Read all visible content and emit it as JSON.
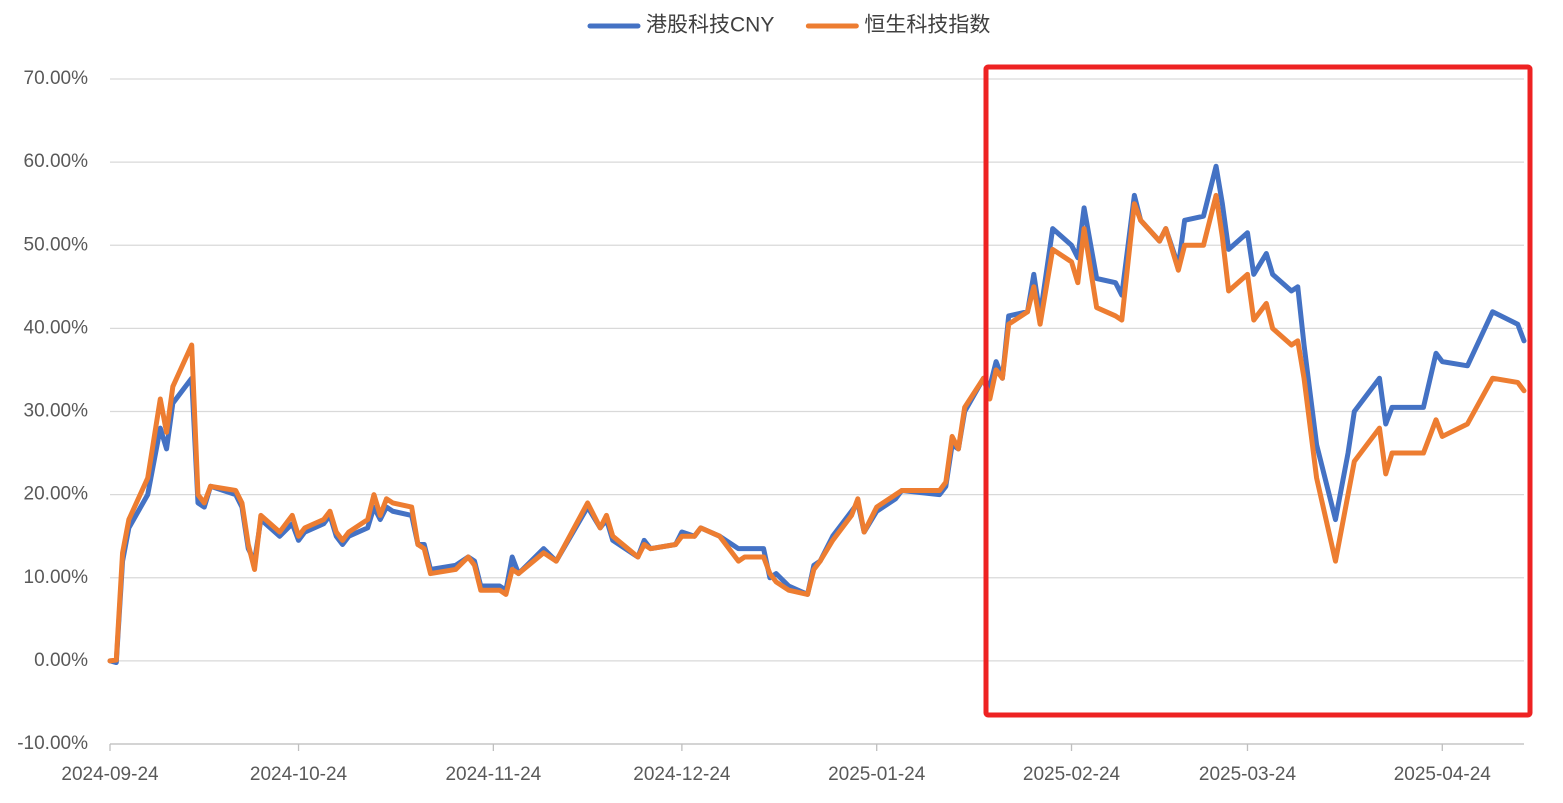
{
  "chart_data": {
    "type": "line",
    "x": [
      "2024-09-24",
      "2024-09-25",
      "2024-09-26",
      "2024-09-27",
      "2024-09-30",
      "2024-10-02",
      "2024-10-03",
      "2024-10-04",
      "2024-10-07",
      "2024-10-08",
      "2024-10-09",
      "2024-10-10",
      "2024-10-14",
      "2024-10-15",
      "2024-10-16",
      "2024-10-17",
      "2024-10-18",
      "2024-10-21",
      "2024-10-23",
      "2024-10-24",
      "2024-10-25",
      "2024-10-28",
      "2024-10-29",
      "2024-10-30",
      "2024-10-31",
      "2024-11-01",
      "2024-11-04",
      "2024-11-05",
      "2024-11-06",
      "2024-11-07",
      "2024-11-08",
      "2024-11-11",
      "2024-11-12",
      "2024-11-13",
      "2024-11-14",
      "2024-11-18",
      "2024-11-20",
      "2024-11-21",
      "2024-11-22",
      "2024-11-25",
      "2024-11-26",
      "2024-11-27",
      "2024-11-28",
      "2024-12-02",
      "2024-12-04",
      "2024-12-09",
      "2024-12-11",
      "2024-12-12",
      "2024-12-13",
      "2024-12-17",
      "2024-12-18",
      "2024-12-19",
      "2024-12-23",
      "2024-12-24",
      "2024-12-26",
      "2024-12-27",
      "2024-12-30",
      "2025-01-02",
      "2025-01-03",
      "2025-01-06",
      "2025-01-07",
      "2025-01-08",
      "2025-01-10",
      "2025-01-13",
      "2025-01-14",
      "2025-01-15",
      "2025-01-17",
      "2025-01-20",
      "2025-01-21",
      "2025-01-22",
      "2025-01-24",
      "2025-01-27",
      "2025-01-28",
      "2025-02-03",
      "2025-02-04",
      "2025-02-05",
      "2025-02-06",
      "2025-02-07",
      "2025-02-10",
      "2025-02-11",
      "2025-02-12",
      "2025-02-13",
      "2025-02-14",
      "2025-02-17",
      "2025-02-18",
      "2025-02-19",
      "2025-02-21",
      "2025-02-24",
      "2025-02-25",
      "2025-02-26",
      "2025-02-28",
      "2025-03-03",
      "2025-03-04",
      "2025-03-06",
      "2025-03-07",
      "2025-03-10",
      "2025-03-11",
      "2025-03-13",
      "2025-03-14",
      "2025-03-17",
      "2025-03-19",
      "2025-03-20",
      "2025-03-21",
      "2025-03-24",
      "2025-03-25",
      "2025-03-27",
      "2025-03-28",
      "2025-03-31",
      "2025-04-01",
      "2025-04-02",
      "2025-04-04",
      "2025-04-07",
      "2025-04-09",
      "2025-04-10",
      "2025-04-14",
      "2025-04-15",
      "2025-04-16",
      "2025-04-21",
      "2025-04-23",
      "2025-04-24",
      "2025-04-28",
      "2025-05-02",
      "2025-05-06",
      "2025-05-07"
    ],
    "series": [
      {
        "name": "港股科技CNY",
        "color": "#4472c4",
        "values": [
          0,
          -0.2,
          12,
          16,
          20,
          28,
          25.5,
          31,
          34,
          19,
          18.5,
          21,
          20,
          18.5,
          13.5,
          12,
          17,
          15,
          16.5,
          14.5,
          15.5,
          16.5,
          17.5,
          15,
          14,
          15,
          16,
          18.5,
          17,
          18.5,
          18,
          17.5,
          14,
          14,
          11,
          11.5,
          12.5,
          12,
          9,
          9,
          8.5,
          12.5,
          10.5,
          13.5,
          12,
          18.5,
          16,
          17,
          14.5,
          12.5,
          14.5,
          13.5,
          14,
          15.5,
          15,
          16,
          15,
          13.5,
          13.5,
          13.5,
          10,
          10.5,
          9,
          8,
          11.5,
          12,
          15,
          18,
          19,
          15.5,
          18,
          19.5,
          20.5,
          20,
          21,
          26,
          25.5,
          30,
          34,
          33,
          36,
          34,
          41.5,
          42,
          46.5,
          41.5,
          52,
          50,
          48.5,
          54.5,
          46,
          45.5,
          44,
          56,
          53,
          50.5,
          52,
          47.5,
          53,
          53.5,
          59.5,
          55,
          49.5,
          51.5,
          46.5,
          49,
          46.5,
          44.5,
          45,
          38,
          26,
          17,
          25,
          30,
          34,
          28.5,
          30.5,
          30.5,
          37,
          36,
          35.5,
          42,
          40.5,
          38.5
        ]
      },
      {
        "name": "恒生科技指数",
        "color": "#ed7d31",
        "values": [
          0,
          0.1,
          13,
          17,
          22,
          31.5,
          27.5,
          33,
          38,
          20,
          19,
          21,
          20.5,
          19,
          14,
          11,
          17.5,
          15.5,
          17.5,
          15,
          16,
          17,
          18,
          15.5,
          14.5,
          15.5,
          17,
          20,
          17.5,
          19.5,
          19,
          18.5,
          14,
          13.5,
          10.5,
          11,
          12.5,
          11.5,
          8.5,
          8.5,
          8,
          11,
          10.5,
          13,
          12,
          19,
          16,
          17.5,
          15,
          12.5,
          14,
          13.5,
          14,
          15,
          15,
          16,
          15,
          12,
          12.5,
          12.5,
          10.5,
          9.5,
          8.5,
          8,
          11,
          12,
          14.5,
          17.5,
          19.5,
          15.5,
          18.5,
          20,
          20.5,
          20.5,
          21.5,
          27,
          25.5,
          30.5,
          34,
          31.5,
          35,
          34,
          40.5,
          42,
          45,
          40.5,
          49.5,
          48,
          45.5,
          52,
          42.5,
          41.5,
          41,
          55,
          53,
          50.5,
          52,
          47,
          50,
          50,
          56,
          51,
          44.5,
          46.5,
          41,
          43,
          40,
          38,
          38.5,
          34,
          22,
          12,
          20,
          24,
          28,
          22.5,
          25,
          25,
          29,
          27,
          28.5,
          34,
          33.5,
          32.5
        ]
      }
    ],
    "xlim": [
      "2024-09-24",
      "2025-05-07"
    ],
    "xticks": [
      "2024-09-24",
      "2024-10-24",
      "2024-11-24",
      "2024-12-24",
      "2025-01-24",
      "2025-02-24",
      "2025-03-24",
      "2025-04-24"
    ],
    "ylim": [
      -10,
      70
    ],
    "yticks": [
      {
        "value": -10,
        "label": "-10.00%"
      },
      {
        "value": 0,
        "label": "0.00%"
      },
      {
        "value": 10,
        "label": "10.00%"
      },
      {
        "value": 20,
        "label": "20.00%"
      },
      {
        "value": 30,
        "label": "30.00%"
      },
      {
        "value": 40,
        "label": "40.00%"
      },
      {
        "value": 50,
        "label": "50.00%"
      },
      {
        "value": 60,
        "label": "60.00%"
      },
      {
        "value": 70,
        "label": "70.00%"
      }
    ],
    "grid": true,
    "legend": "top"
  }
}
